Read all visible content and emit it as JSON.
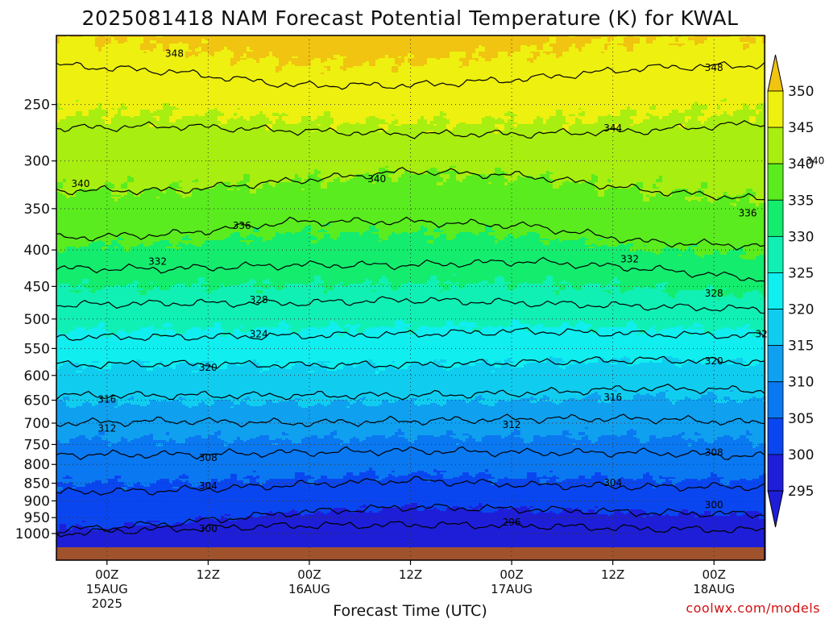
{
  "chart_data": {
    "type": "heatmap",
    "title": "2025081418 NAM Forecast Potential Temperature (K) for KWAL",
    "xlabel": "Forecast Time (UTC)",
    "ylabel": "",
    "credit": "coolwx.com/models",
    "y_scale": "log",
    "y_inverted": true,
    "ylim": [
      1000,
      200
    ],
    "y_ticks": [
      250,
      300,
      350,
      400,
      450,
      500,
      550,
      600,
      650,
      700,
      750,
      800,
      850,
      900,
      950,
      1000
    ],
    "xlim": [
      "2025-08-14 18Z",
      "2025-08-18 06Z"
    ],
    "x_ticks": [
      {
        "time": "2025-08-15 00Z",
        "hour": "00Z",
        "date": "15AUG",
        "year": "2025"
      },
      {
        "time": "2025-08-15 12Z",
        "hour": "12Z",
        "date": "",
        "year": ""
      },
      {
        "time": "2025-08-16 00Z",
        "hour": "00Z",
        "date": "16AUG",
        "year": ""
      },
      {
        "time": "2025-08-16 12Z",
        "hour": "12Z",
        "date": "",
        "year": ""
      },
      {
        "time": "2025-08-17 00Z",
        "hour": "00Z",
        "date": "17AUG",
        "year": ""
      },
      {
        "time": "2025-08-17 12Z",
        "hour": "12Z",
        "date": "",
        "year": ""
      },
      {
        "time": "2025-08-18 00Z",
        "hour": "00Z",
        "date": "18AUG",
        "year": ""
      }
    ],
    "grid": true,
    "colorbar": {
      "levels": [
        295,
        300,
        305,
        310,
        315,
        320,
        325,
        330,
        335,
        340,
        345,
        350
      ],
      "colors": [
        "#1e1ed8",
        "#0a46f0",
        "#0a78f0",
        "#10a0f0",
        "#10cdf0",
        "#10eef0",
        "#10f0b4",
        "#14ec6e",
        "#5aec1e",
        "#a8ee10",
        "#eef010",
        "#f0c410"
      ],
      "under_color": "#1e1ed8",
      "over_color": "#f0c410"
    },
    "contour_interval": 4,
    "isentropes": [
      {
        "theta": 296,
        "pressure": [
          1000,
          985,
          975,
          972,
          975,
          985,
          990
        ]
      },
      {
        "theta": 300,
        "pressure": [
          990,
          968,
          935,
          918,
          925,
          935,
          940
        ]
      },
      {
        "theta": 304,
        "pressure": [
          875,
          870,
          855,
          842,
          855,
          860,
          860
        ]
      },
      {
        "theta": 308,
        "pressure": [
          775,
          775,
          770,
          765,
          770,
          770,
          780
        ]
      },
      {
        "theta": 312,
        "pressure": [
          700,
          695,
          700,
          695,
          690,
          690,
          700
        ]
      },
      {
        "theta": 316,
        "pressure": [
          640,
          640,
          640,
          640,
          635,
          625,
          630
        ]
      },
      {
        "theta": 320,
        "pressure": [
          580,
          578,
          580,
          580,
          575,
          570,
          575
        ]
      },
      {
        "theta": 324,
        "pressure": [
          530,
          530,
          528,
          525,
          520,
          525,
          528
        ]
      },
      {
        "theta": 328,
        "pressure": [
          478,
          475,
          475,
          470,
          475,
          480,
          485
        ]
      },
      {
        "theta": 332,
        "pressure": [
          425,
          425,
          420,
          420,
          415,
          425,
          440
        ]
      },
      {
        "theta": 336,
        "pressure": [
          385,
          380,
          365,
          365,
          370,
          390,
          395
        ]
      },
      {
        "theta": 340,
        "pressure": [
          330,
          330,
          320,
          310,
          315,
          330,
          340
        ]
      },
      {
        "theta": 344,
        "pressure": [
          270,
          268,
          272,
          275,
          275,
          272,
          265
        ]
      },
      {
        "theta": 348,
        "pressure": [
          220,
          225,
          235,
          235,
          230,
          222,
          220
        ]
      }
    ],
    "contour_labels": [
      {
        "text": "348",
        "time_h": 14,
        "p": 212
      },
      {
        "text": "348",
        "time_h": 78,
        "p": 222
      },
      {
        "text": "344",
        "time_h": 66,
        "p": 270
      },
      {
        "text": "344",
        "time_h": 142,
        "p": 271
      },
      {
        "text": "340",
        "time_h": 0,
        "p": 323
      },
      {
        "text": "340",
        "time_h": 38,
        "p": 318
      },
      {
        "text": "340",
        "time_h": 90,
        "p": 300
      },
      {
        "text": "340",
        "time_h": 138,
        "p": 330
      },
      {
        "text": "336",
        "time_h": 22,
        "p": 370
      },
      {
        "text": "336",
        "time_h": 82,
        "p": 355
      },
      {
        "text": "336",
        "time_h": 156,
        "p": 380
      },
      {
        "text": "332",
        "time_h": 12,
        "p": 415
      },
      {
        "text": "332",
        "time_h": 68,
        "p": 412
      },
      {
        "text": "332",
        "time_h": 132,
        "p": 425
      },
      {
        "text": "328",
        "time_h": 24,
        "p": 470
      },
      {
        "text": "328",
        "time_h": 78,
        "p": 460
      },
      {
        "text": "328",
        "time_h": 144,
        "p": 485
      },
      {
        "text": "324",
        "time_h": 24,
        "p": 525
      },
      {
        "text": "324",
        "time_h": 84,
        "p": 525
      },
      {
        "text": "324",
        "time_h": 138,
        "p": 520
      },
      {
        "text": "320",
        "time_h": 18,
        "p": 585
      },
      {
        "text": "320",
        "time_h": 78,
        "p": 573
      },
      {
        "text": "320",
        "time_h": 162,
        "p": 587
      },
      {
        "text": "316",
        "time_h": 6,
        "p": 648
      },
      {
        "text": "316",
        "time_h": 66,
        "p": 644
      },
      {
        "text": "316",
        "time_h": 138,
        "p": 625
      },
      {
        "text": "312",
        "time_h": 6,
        "p": 712
      },
      {
        "text": "312",
        "time_h": 54,
        "p": 704
      },
      {
        "text": "312",
        "time_h": 138,
        "p": 690
      },
      {
        "text": "308",
        "time_h": 18,
        "p": 783
      },
      {
        "text": "308",
        "time_h": 78,
        "p": 770
      },
      {
        "text": "308",
        "time_h": 138,
        "p": 770
      },
      {
        "text": "304",
        "time_h": 18,
        "p": 858
      },
      {
        "text": "304",
        "time_h": 66,
        "p": 849
      },
      {
        "text": "304",
        "time_h": 138,
        "p": 848
      },
      {
        "text": "300",
        "time_h": 78,
        "p": 912
      },
      {
        "text": "300",
        "time_h": 138,
        "p": 917
      },
      {
        "text": "300",
        "time_h": 18,
        "p": 985
      },
      {
        "text": "296",
        "time_h": 54,
        "p": 965
      },
      {
        "text": "296",
        "time_h": 114,
        "p": 978
      }
    ]
  }
}
